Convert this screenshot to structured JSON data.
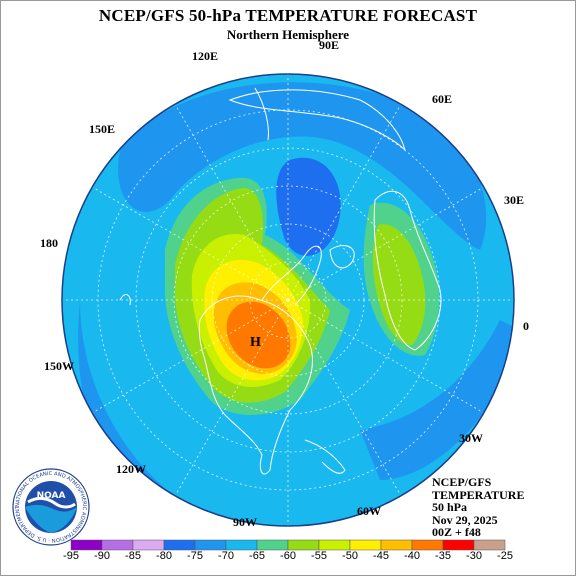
{
  "title": "NCEP/GFS 50-hPa TEMPERATURE FORECAST",
  "subtitle": "Northern Hemisphere",
  "longitude_labels": {
    "lon_90e": "90E",
    "lon_120e": "120E",
    "lon_60e": "60E",
    "lon_150e": "150E",
    "lon_30e": "30E",
    "lon_180": "180",
    "lon_0": "0",
    "lon_150w": "150W",
    "lon_30w": "30W",
    "lon_120w": "120W",
    "lon_60w": "60W",
    "lon_90w": "90W"
  },
  "high_marker": "H",
  "info": {
    "line1": "NCEP/GFS",
    "line2": "TEMPERATURE",
    "line3": "50 hPa",
    "line4": "Nov 29, 2025",
    "line5": "00Z + f48"
  },
  "logo": {
    "text": "NOAA",
    "ring_text": "NATIONAL OCEANIC AND ATMOSPHERIC ADMINISTRATION · U.S. DEPARTMENT OF COMMERCE"
  },
  "colorbar": {
    "labels": [
      "-95",
      "-90",
      "-85",
      "-80",
      "-75",
      "-70",
      "-65",
      "-60",
      "-55",
      "-50",
      "-45",
      "-40",
      "-35",
      "-30",
      "-25"
    ],
    "colors": [
      "#8e00c8",
      "#b46ee6",
      "#dcaaf0",
      "#1e6ef0",
      "#1e96f0",
      "#19b9f0",
      "#50d28c",
      "#96dc14",
      "#c8f000",
      "#fff000",
      "#ffbe00",
      "#ff7800",
      "#ff0000",
      "#c8a08c",
      "#7a4b3a"
    ]
  },
  "colors": {
    "background_field": "#19b9f0",
    "cold_field": "#1e96f0",
    "coastline": "#ffffff",
    "grid": "#ffffff"
  }
}
